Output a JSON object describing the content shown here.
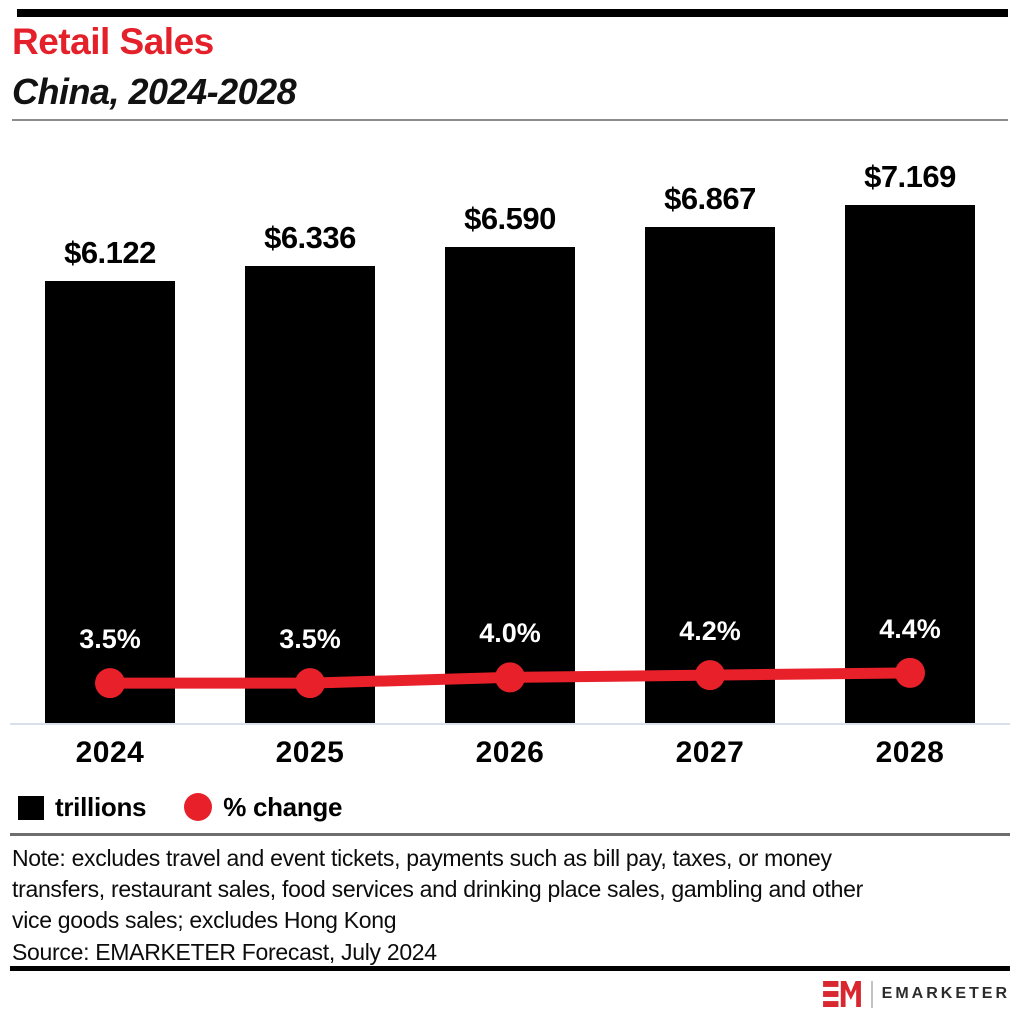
{
  "header": {
    "title": "Retail Sales",
    "subtitle": "China, 2024-2028"
  },
  "chart_data": {
    "type": "bar",
    "combo": "bar with line overlay",
    "title": "Retail Sales",
    "subtitle": "China, 2024-2028",
    "categories": [
      "2024",
      "2025",
      "2026",
      "2027",
      "2028"
    ],
    "series": [
      {
        "name": "trillions",
        "chart": "bar",
        "unit": "US$ trillions",
        "color": "#000000",
        "values": [
          6.122,
          6.336,
          6.59,
          6.867,
          7.169
        ],
        "labels": [
          "$6.122",
          "$6.336",
          "$6.590",
          "$6.867",
          "$7.169"
        ]
      },
      {
        "name": "% change",
        "chart": "line",
        "unit": "percent",
        "color": "#e8202a",
        "values": [
          3.5,
          3.5,
          4.0,
          4.2,
          4.4
        ],
        "labels": [
          "3.5%",
          "3.5%",
          "4.0%",
          "4.2%",
          "4.4%"
        ]
      }
    ],
    "xlabel": "",
    "ylabel": "",
    "grid": false,
    "legend_position": "bottom-left"
  },
  "legend": {
    "items": [
      {
        "label": "trillions",
        "swatch": "square",
        "color": "#000000"
      },
      {
        "label": "% change",
        "swatch": "circle",
        "color": "#e8202a"
      }
    ]
  },
  "footer": {
    "note_lines": [
      "Note: excludes travel and event tickets, payments such as bill pay, taxes, or money",
      "transfers, restaurant sales, food services and drinking place sales, gambling and other",
      "vice goods sales; excludes Hong Kong"
    ],
    "source": "Source: EMARKETER Forecast, July 2024"
  },
  "brand": {
    "mark": "EM",
    "mark_color": "#d8272e",
    "name": "EMARKETER"
  },
  "colors": {
    "accent": "#e8202a",
    "title": "#e4202a",
    "bar": "#000000",
    "baseline": "#d9dfeb",
    "subtitle_rule": "#8c8c8c",
    "note_rule": "#6e6e6e",
    "top_rule": "#000000",
    "background": "#ffffff"
  }
}
